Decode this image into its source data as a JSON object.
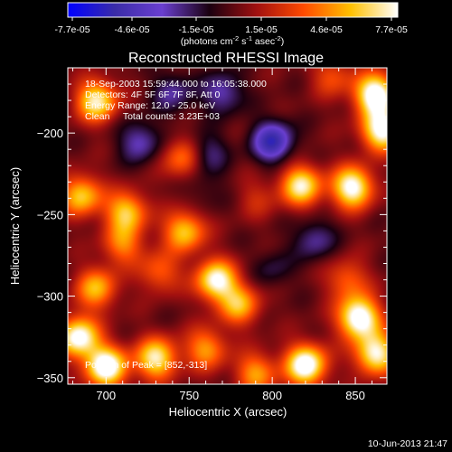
{
  "colorbar": {
    "ticks": [
      "-7.7e-05",
      "-4.6e-05",
      "-1.5e-05",
      "1.5e-05",
      "4.6e-05",
      "7.7e-05"
    ],
    "units_main": "(photons cm",
    "units_exp1": "-2",
    "units_mid": " s",
    "units_exp2": "-1",
    "units_tail": " asec",
    "units_exp3": "-2",
    "units_close": ")",
    "palette": [
      "#0000ff",
      "#3a2ca8",
      "#6a3fd0",
      "#1a0010",
      "#a01010",
      "#ff4a00",
      "#ffc000",
      "#ffffff"
    ]
  },
  "title": "Reconstructed RHESSI Image",
  "annotations": {
    "line1": "18-Sep-2003 15:59:44.000 to 16:05:38.000",
    "line2": "Detectors: 4F 5F 6F 7F 8F, Att 0",
    "line3": "Energy Range: 12.0 - 25.0 keV",
    "line4": "Clean     Total counts: 3.23E+03",
    "peak": "Position of Peak = [852,-313]"
  },
  "footer_timestamp": "10-Jun-2013 21:47",
  "chart_data": {
    "type": "heatmap",
    "xlabel": "Heliocentric X (arcsec)",
    "ylabel": "Heliocentric Y (arcsec)",
    "xlim": [
      677,
      869
    ],
    "ylim": [
      -354,
      -160
    ],
    "xticks": [
      700,
      750,
      800,
      850
    ],
    "yticks": [
      -200,
      -250,
      -300,
      -350
    ],
    "color_range": [
      -7.7e-05,
      7.7e-05
    ],
    "peak_position": [
      852,
      -313
    ],
    "sources": [
      {
        "x": 694,
        "y": -295,
        "v": 4.5e-05
      },
      {
        "x": 683,
        "y": -325,
        "v": 7e-05
      },
      {
        "x": 700,
        "y": -343,
        "v": 7.5e-05
      },
      {
        "x": 730,
        "y": -338,
        "v": 6e-05
      },
      {
        "x": 760,
        "y": -332,
        "v": 4e-05
      },
      {
        "x": 790,
        "y": -347,
        "v": 4e-05
      },
      {
        "x": 820,
        "y": -342,
        "v": 7.5e-05
      },
      {
        "x": 852,
        "y": -313,
        "v": 7.7e-05
      },
      {
        "x": 862,
        "y": -335,
        "v": 6.5e-05
      },
      {
        "x": 845,
        "y": -290,
        "v": 3e-05
      },
      {
        "x": 780,
        "y": -305,
        "v": 4.5e-05
      },
      {
        "x": 766,
        "y": -290,
        "v": 6.5e-05
      },
      {
        "x": 747,
        "y": -260,
        "v": 5e-05
      },
      {
        "x": 732,
        "y": -285,
        "v": 3e-05
      },
      {
        "x": 710,
        "y": -268,
        "v": 3.5e-05
      },
      {
        "x": 685,
        "y": -238,
        "v": 5e-05
      },
      {
        "x": 712,
        "y": -248,
        "v": 5e-05
      },
      {
        "x": 746,
        "y": -215,
        "v": 3.5e-05
      },
      {
        "x": 694,
        "y": -180,
        "v": 6e-05
      },
      {
        "x": 790,
        "y": -240,
        "v": 1.5e-05
      },
      {
        "x": 817,
        "y": -232,
        "v": 6e-05
      },
      {
        "x": 848,
        "y": -233,
        "v": 7e-05
      },
      {
        "x": 866,
        "y": -198,
        "v": 7e-05
      },
      {
        "x": 862,
        "y": -176,
        "v": 7.7e-05
      },
      {
        "x": 836,
        "y": -165,
        "v": 2.5e-05
      },
      {
        "x": 770,
        "y": -175,
        "v": -3e-05
      },
      {
        "x": 800,
        "y": -205,
        "v": -5e-05
      },
      {
        "x": 760,
        "y": -212,
        "v": -2.5e-05
      },
      {
        "x": 740,
        "y": -175,
        "v": -2.5e-05
      },
      {
        "x": 720,
        "y": -205,
        "v": -3e-05
      },
      {
        "x": 825,
        "y": -265,
        "v": -2.5e-05
      },
      {
        "x": 800,
        "y": -283,
        "v": -1.5e-05
      },
      {
        "x": 760,
        "y": -235,
        "v": -1e-05
      }
    ]
  }
}
